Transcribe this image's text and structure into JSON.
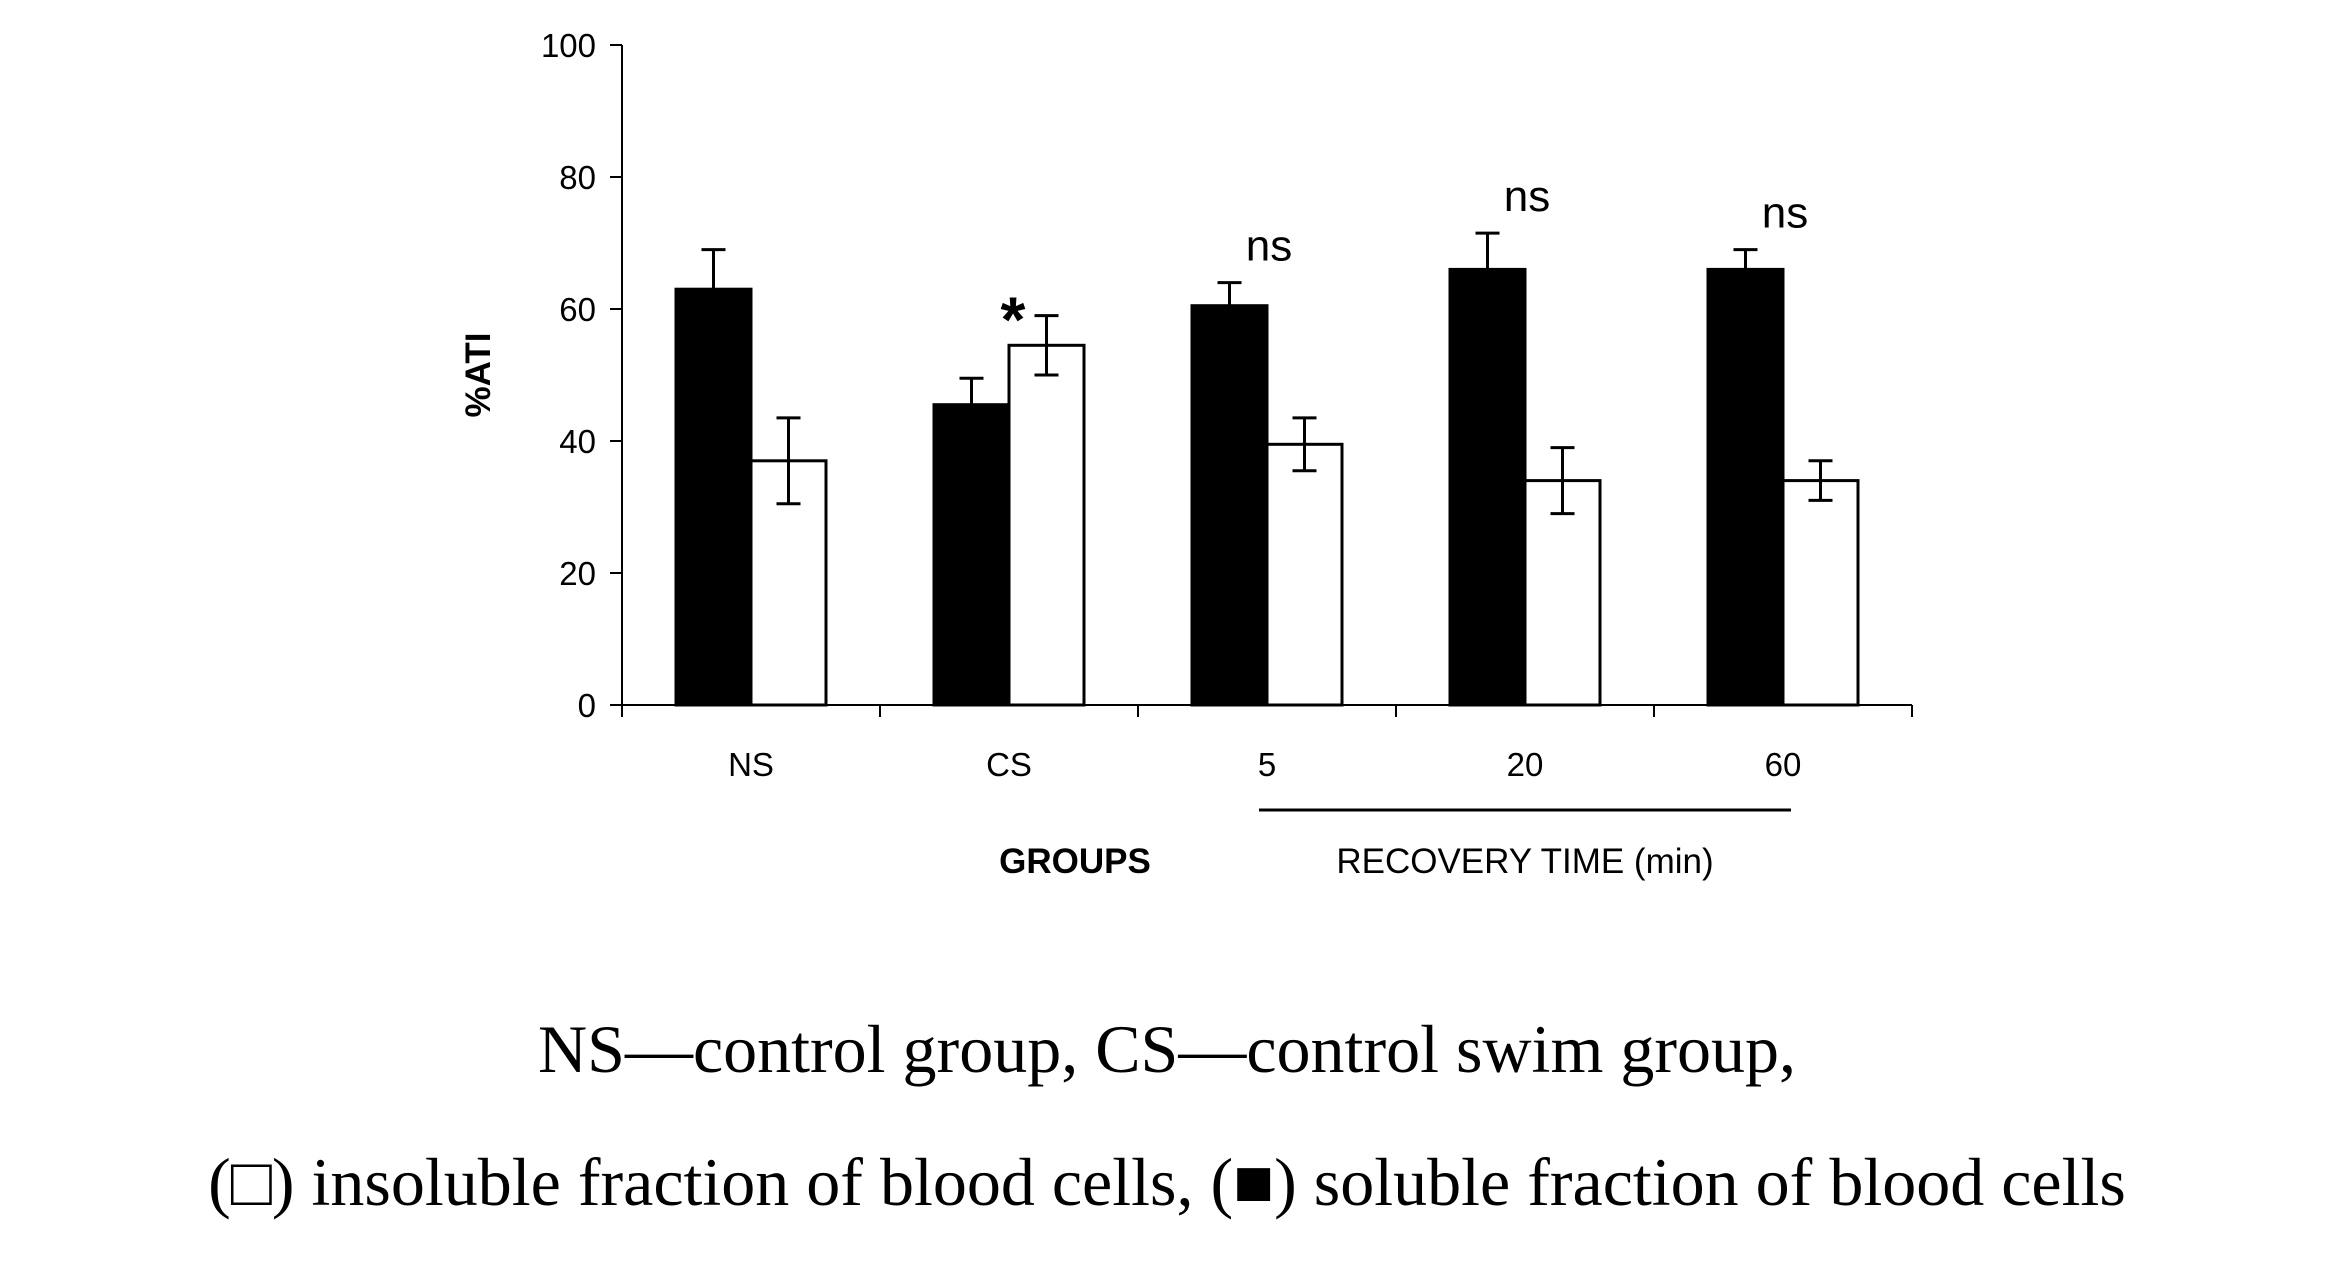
{
  "chart_data": {
    "type": "bar",
    "title": "",
    "xlabel": "GROUPS",
    "secondary_xlabel": "RECOVERY TIME (min)",
    "ylabel": "%ATI",
    "ylim": [
      0,
      100
    ],
    "yticks": [
      "0",
      "20",
      "40",
      "60",
      "80",
      "100"
    ],
    "categories": [
      "NS",
      "CS",
      "5",
      "20",
      "60"
    ],
    "series": [
      {
        "name": "soluble fraction of blood cells",
        "fill": "#000000",
        "values": [
          63,
          45.5,
          60.5,
          66,
          66
        ],
        "errors": [
          6,
          4,
          3.5,
          5.5,
          3
        ]
      },
      {
        "name": "insoluble fraction of blood cells",
        "fill": "#ffffff",
        "values": [
          37,
          54.5,
          39.5,
          34,
          34
        ],
        "errors": [
          6.5,
          4.5,
          4,
          5,
          3
        ]
      }
    ],
    "annotations": [
      {
        "category": "CS",
        "text": "*"
      },
      {
        "category": "5",
        "text": "ns"
      },
      {
        "category": "20",
        "text": "ns"
      },
      {
        "category": "60",
        "text": "ns"
      }
    ]
  },
  "caption": {
    "line1": "NS—control group, CS—control swim group,",
    "line2": "(□) insoluble fraction of blood cells, (■) soluble fraction of blood cells"
  }
}
